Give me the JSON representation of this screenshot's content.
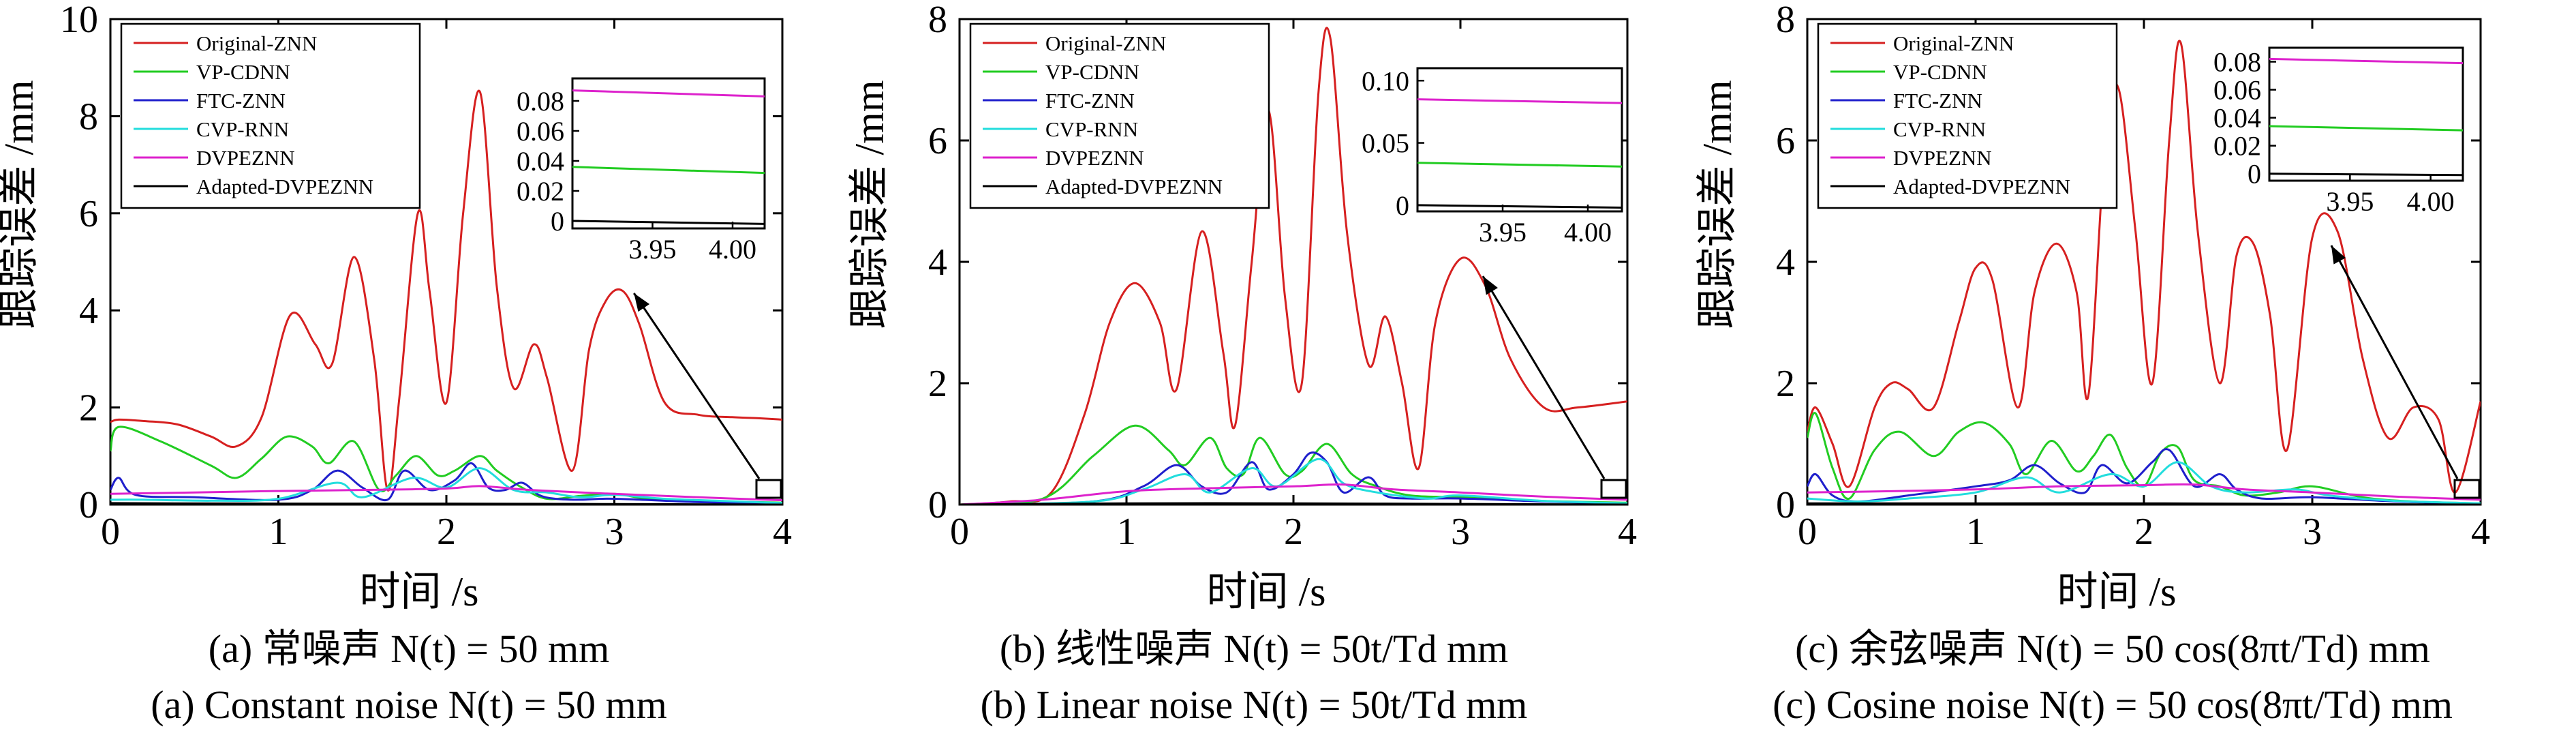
{
  "chart_data": [
    {
      "type": "line",
      "ylabel": "跟踪误差 /mm",
      "xlabel": "时间 /s",
      "caption_cn": "(a) 常噪声 N(t) = 50 mm",
      "caption_en": "(a) Constant noise N(t) = 50 mm",
      "xlim": [
        0,
        4
      ],
      "ylim": [
        0,
        10
      ],
      "xticks": [
        "0",
        "1",
        "2",
        "3",
        "4"
      ],
      "yticks": [
        "0",
        "2",
        "4",
        "6",
        "8",
        "10"
      ],
      "legend_position": "top-left",
      "grid": false,
      "series": [
        {
          "name": "Original-ZNN",
          "color": "#d62020",
          "x": [
            0,
            0.05,
            0.2,
            0.4,
            0.6,
            0.75,
            0.9,
            1.07,
            1.22,
            1.32,
            1.45,
            1.57,
            1.65,
            1.72,
            1.83,
            1.9,
            2.0,
            2.1,
            2.2,
            2.3,
            2.4,
            2.52,
            2.6,
            2.75,
            2.85,
            2.95,
            3.05,
            3.15,
            3.3,
            3.5,
            3.7,
            3.85,
            4.0
          ],
          "y": [
            1.7,
            1.75,
            1.72,
            1.65,
            1.4,
            1.2,
            1.8,
            3.9,
            3.3,
            2.9,
            5.1,
            3.0,
            0.3,
            2.2,
            6.0,
            4.4,
            2.1,
            6.0,
            8.5,
            4.5,
            2.4,
            3.3,
            2.6,
            0.7,
            3.2,
            4.2,
            4.4,
            3.7,
            2.1,
            1.85,
            1.8,
            1.78,
            1.75
          ]
        },
        {
          "name": "VP-CDNN",
          "color": "#22cc22",
          "x": [
            0,
            0.05,
            0.3,
            0.6,
            0.75,
            0.9,
            1.05,
            1.2,
            1.3,
            1.45,
            1.6,
            1.7,
            1.82,
            1.95,
            2.05,
            2.2,
            2.3,
            2.45,
            2.6,
            2.8,
            3.0,
            3.2,
            3.5,
            4.0
          ],
          "y": [
            1.1,
            1.6,
            1.3,
            0.8,
            0.55,
            0.95,
            1.4,
            1.2,
            0.85,
            1.3,
            0.3,
            0.6,
            1.0,
            0.6,
            0.7,
            1.0,
            0.7,
            0.35,
            0.12,
            0.18,
            0.22,
            0.12,
            0.08,
            0.04
          ]
        },
        {
          "name": "FTC-ZNN",
          "color": "#1f1fcc",
          "x": [
            0,
            0.05,
            0.15,
            0.5,
            1.0,
            1.2,
            1.35,
            1.5,
            1.65,
            1.75,
            1.9,
            2.05,
            2.15,
            2.25,
            2.35,
            2.45,
            2.55,
            2.65,
            2.8,
            3.0,
            3.5,
            4.0
          ],
          "y": [
            0.3,
            0.55,
            0.2,
            0.15,
            0.1,
            0.3,
            0.7,
            0.35,
            0.1,
            0.7,
            0.3,
            0.5,
            0.85,
            0.35,
            0.3,
            0.45,
            0.2,
            0.12,
            0.1,
            0.12,
            0.05,
            0.01
          ]
        },
        {
          "name": "CVP-RNN",
          "color": "#22dddd",
          "x": [
            0,
            0.2,
            0.6,
            1.0,
            1.35,
            1.5,
            1.8,
            2.0,
            2.2,
            2.4,
            2.6,
            2.8,
            3.0,
            3.3,
            3.6,
            4.0
          ],
          "y": [
            0.1,
            0.1,
            0.08,
            0.12,
            0.45,
            0.15,
            0.55,
            0.35,
            0.75,
            0.3,
            0.25,
            0.15,
            0.2,
            0.12,
            0.08,
            0.03
          ]
        },
        {
          "name": "DVPEZNN",
          "color": "#dd22cc",
          "x": [
            0,
            0.5,
            1.0,
            1.5,
            2.0,
            2.2,
            2.5,
            3.0,
            3.5,
            4.0
          ],
          "y": [
            0.22,
            0.25,
            0.28,
            0.3,
            0.33,
            0.38,
            0.3,
            0.22,
            0.15,
            0.09
          ]
        },
        {
          "name": "Adapted-DVPEZNN",
          "color": "#000000",
          "x": [
            0,
            1.0,
            2.0,
            3.0,
            4.0
          ],
          "y": [
            0.03,
            0.02,
            0.02,
            0.01,
            0.0
          ]
        }
      ],
      "inset": {
        "xlim": [
          3.9,
          4.02
        ],
        "ylim": [
          -0.005,
          0.095
        ],
        "xticks": [
          "3.95",
          "4.00"
        ],
        "yticks": [
          "0",
          "0.02",
          "0.04",
          "0.06",
          "0.08"
        ],
        "series": [
          {
            "name": "DVPEZNN",
            "x": [
              3.9,
              4.02
            ],
            "y": [
              0.087,
              0.083
            ]
          },
          {
            "name": "VP-CDNN",
            "x": [
              3.9,
              4.02
            ],
            "y": [
              0.036,
              0.032
            ]
          },
          {
            "name": "Adapted-DVPEZNN",
            "x": [
              3.9,
              4.02
            ],
            "y": [
              0.0,
              -0.002
            ]
          }
        ]
      }
    },
    {
      "type": "line",
      "ylabel": "跟踪误差 /mm",
      "xlabel": "时间 /s",
      "caption_cn": "(b) 线性噪声 N(t) = 50t/Td mm",
      "caption_en": "(b) Linear noise N(t) = 50t/Td mm",
      "xlim": [
        0,
        4
      ],
      "ylim": [
        0,
        8
      ],
      "xticks": [
        "0",
        "1",
        "2",
        "3",
        "4"
      ],
      "yticks": [
        "0",
        "2",
        "4",
        "6",
        "8"
      ],
      "legend_position": "top-left",
      "grid": false,
      "series": [
        {
          "name": "Original-ZNN",
          "color": "#d62020",
          "x": [
            0,
            0.3,
            0.55,
            0.75,
            0.9,
            1.05,
            1.2,
            1.3,
            1.45,
            1.58,
            1.65,
            1.75,
            1.85,
            1.95,
            2.05,
            2.15,
            2.22,
            2.32,
            2.45,
            2.55,
            2.65,
            2.75,
            2.85,
            3.0,
            3.15,
            3.3,
            3.5,
            3.7,
            4.0
          ],
          "y": [
            0.0,
            0.05,
            0.2,
            1.5,
            3.0,
            3.65,
            3.0,
            1.9,
            4.5,
            2.5,
            1.3,
            4.0,
            6.5,
            3.4,
            2.0,
            6.8,
            7.7,
            4.5,
            2.3,
            3.1,
            2.0,
            0.6,
            3.0,
            4.05,
            3.6,
            2.4,
            1.6,
            1.6,
            1.7
          ]
        },
        {
          "name": "VP-CDNN",
          "color": "#22cc22",
          "x": [
            0,
            0.5,
            0.8,
            1.05,
            1.25,
            1.35,
            1.5,
            1.6,
            1.7,
            1.8,
            1.95,
            2.05,
            2.2,
            2.35,
            2.5,
            2.7,
            3.0,
            3.5,
            4.0
          ],
          "y": [
            0.0,
            0.1,
            0.8,
            1.3,
            0.9,
            0.65,
            1.1,
            0.6,
            0.5,
            1.1,
            0.5,
            0.55,
            1.0,
            0.5,
            0.3,
            0.15,
            0.12,
            0.06,
            0.03
          ]
        },
        {
          "name": "FTC-ZNN",
          "color": "#1f1fcc",
          "x": [
            0,
            0.8,
            1.1,
            1.3,
            1.45,
            1.6,
            1.75,
            1.85,
            2.0,
            2.1,
            2.2,
            2.3,
            2.45,
            2.55,
            2.7,
            3.0,
            3.5,
            4.0
          ],
          "y": [
            0.0,
            0.05,
            0.3,
            0.65,
            0.3,
            0.2,
            0.7,
            0.25,
            0.5,
            0.85,
            0.7,
            0.2,
            0.45,
            0.15,
            0.1,
            0.1,
            0.05,
            0.01
          ]
        },
        {
          "name": "CVP-RNN",
          "color": "#22dddd",
          "x": [
            0,
            0.8,
            1.1,
            1.35,
            1.5,
            1.75,
            1.9,
            2.15,
            2.3,
            2.5,
            2.8,
            3.0,
            3.5,
            4.0
          ],
          "y": [
            0.0,
            0.05,
            0.25,
            0.5,
            0.2,
            0.6,
            0.3,
            0.75,
            0.35,
            0.2,
            0.1,
            0.15,
            0.06,
            0.02
          ]
        },
        {
          "name": "DVPEZNN",
          "color": "#dd22cc",
          "x": [
            0,
            0.5,
            1.0,
            1.5,
            2.0,
            2.3,
            2.6,
            3.0,
            3.5,
            4.0
          ],
          "y": [
            0.0,
            0.08,
            0.22,
            0.27,
            0.3,
            0.33,
            0.25,
            0.2,
            0.13,
            0.08
          ]
        },
        {
          "name": "Adapted-DVPEZNN",
          "color": "#000000",
          "x": [
            0,
            1.0,
            2.0,
            3.0,
            4.0
          ],
          "y": [
            0.0,
            0.02,
            0.02,
            0.01,
            0.0
          ]
        }
      ],
      "inset": {
        "xlim": [
          3.9,
          4.02
        ],
        "ylim": [
          -0.005,
          0.11
        ],
        "xticks": [
          "3.95",
          "4.00"
        ],
        "yticks": [
          "0",
          "0.05",
          "0.10"
        ],
        "series": [
          {
            "name": "DVPEZNN",
            "x": [
              3.9,
              4.02
            ],
            "y": [
              0.085,
              0.082
            ]
          },
          {
            "name": "VP-CDNN",
            "x": [
              3.9,
              4.02
            ],
            "y": [
              0.034,
              0.031
            ]
          },
          {
            "name": "Adapted-DVPEZNN",
            "x": [
              3.9,
              4.02
            ],
            "y": [
              0.0,
              -0.002
            ]
          }
        ]
      }
    },
    {
      "type": "line",
      "ylabel": "跟踪误差 /mm",
      "xlabel": "时间 /s",
      "caption_cn": "(c) 余弦噪声 N(t) = 50 cos(8πt/Td) mm",
      "caption_en": "(c) Cosine noise N(t) = 50 cos(8πt/Td) mm",
      "xlim": [
        0,
        4
      ],
      "ylim": [
        0,
        8
      ],
      "xticks": [
        "0",
        "1",
        "2",
        "3",
        "4"
      ],
      "yticks": [
        "0",
        "2",
        "4",
        "6",
        "8"
      ],
      "legend_position": "top-left",
      "grid": false,
      "series": [
        {
          "name": "Original-ZNN",
          "color": "#d62020",
          "x": [
            0,
            0.05,
            0.15,
            0.25,
            0.4,
            0.5,
            0.6,
            0.75,
            0.9,
            1.0,
            1.1,
            1.25,
            1.35,
            1.48,
            1.6,
            1.67,
            1.77,
            1.85,
            1.95,
            2.05,
            2.15,
            2.22,
            2.32,
            2.45,
            2.55,
            2.65,
            2.75,
            2.85,
            3.0,
            3.15,
            3.3,
            3.45,
            3.6,
            3.75,
            3.85,
            4.0
          ],
          "y": [
            1.2,
            1.6,
            1.0,
            0.3,
            1.6,
            2.0,
            1.9,
            1.6,
            3.0,
            3.9,
            3.7,
            1.6,
            3.5,
            4.3,
            3.5,
            1.8,
            6.0,
            6.85,
            4.5,
            2.0,
            6.0,
            7.6,
            4.5,
            2.0,
            4.1,
            4.3,
            3.1,
            0.9,
            4.4,
            4.5,
            2.4,
            1.1,
            1.6,
            1.4,
            0.2,
            1.7
          ]
        },
        {
          "name": "VP-CDNN",
          "color": "#22cc22",
          "x": [
            0,
            0.05,
            0.15,
            0.25,
            0.4,
            0.55,
            0.75,
            0.9,
            1.05,
            1.2,
            1.3,
            1.45,
            1.6,
            1.7,
            1.8,
            1.9,
            2.0,
            2.1,
            2.2,
            2.3,
            2.45,
            2.6,
            2.8,
            3.0,
            3.3,
            3.6,
            4.0
          ],
          "y": [
            1.1,
            1.5,
            0.6,
            0.1,
            0.9,
            1.2,
            0.8,
            1.2,
            1.35,
            1.0,
            0.5,
            1.05,
            0.55,
            0.8,
            1.15,
            0.6,
            0.3,
            0.85,
            0.95,
            0.4,
            0.3,
            0.15,
            0.2,
            0.3,
            0.12,
            0.05,
            0.02
          ]
        },
        {
          "name": "FTC-ZNN",
          "color": "#1f1fcc",
          "x": [
            0,
            0.05,
            0.15,
            0.3,
            0.6,
            1.0,
            1.2,
            1.35,
            1.5,
            1.65,
            1.75,
            1.9,
            2.05,
            2.15,
            2.3,
            2.45,
            2.55,
            2.7,
            3.0,
            3.5,
            4.0
          ],
          "y": [
            0.3,
            0.5,
            0.15,
            0.05,
            0.15,
            0.3,
            0.4,
            0.65,
            0.35,
            0.2,
            0.65,
            0.35,
            0.7,
            0.9,
            0.3,
            0.5,
            0.25,
            0.1,
            0.12,
            0.05,
            0.01
          ]
        },
        {
          "name": "CVP-RNN",
          "color": "#22dddd",
          "x": [
            0,
            0.3,
            0.6,
            1.0,
            1.3,
            1.5,
            1.8,
            2.0,
            2.2,
            2.4,
            2.6,
            2.9,
            3.1,
            3.5,
            4.0
          ],
          "y": [
            0.1,
            0.05,
            0.1,
            0.2,
            0.45,
            0.2,
            0.5,
            0.3,
            0.7,
            0.3,
            0.2,
            0.25,
            0.15,
            0.06,
            0.02
          ]
        },
        {
          "name": "DVPEZNN",
          "color": "#dd22cc",
          "x": [
            0,
            0.5,
            1.0,
            1.5,
            2.0,
            2.3,
            2.6,
            3.0,
            3.5,
            4.0
          ],
          "y": [
            0.2,
            0.22,
            0.25,
            0.3,
            0.32,
            0.33,
            0.25,
            0.2,
            0.13,
            0.08
          ]
        },
        {
          "name": "Adapted-DVPEZNN",
          "color": "#000000",
          "x": [
            0,
            1.0,
            2.0,
            3.0,
            4.0
          ],
          "y": [
            0.02,
            0.02,
            0.02,
            0.01,
            0.0
          ]
        }
      ],
      "inset": {
        "xlim": [
          3.9,
          4.02
        ],
        "ylim": [
          -0.005,
          0.09
        ],
        "xticks": [
          "3.95",
          "4.00"
        ],
        "yticks": [
          "0",
          "0.02",
          "0.04",
          "0.06",
          "0.08"
        ],
        "series": [
          {
            "name": "DVPEZNN",
            "x": [
              3.9,
              4.02
            ],
            "y": [
              0.082,
              0.079
            ]
          },
          {
            "name": "VP-CDNN",
            "x": [
              3.9,
              4.02
            ],
            "y": [
              0.034,
              0.031
            ]
          },
          {
            "name": "Adapted-DVPEZNN",
            "x": [
              3.9,
              4.02
            ],
            "y": [
              0.0,
              -0.001
            ]
          }
        ]
      }
    }
  ]
}
